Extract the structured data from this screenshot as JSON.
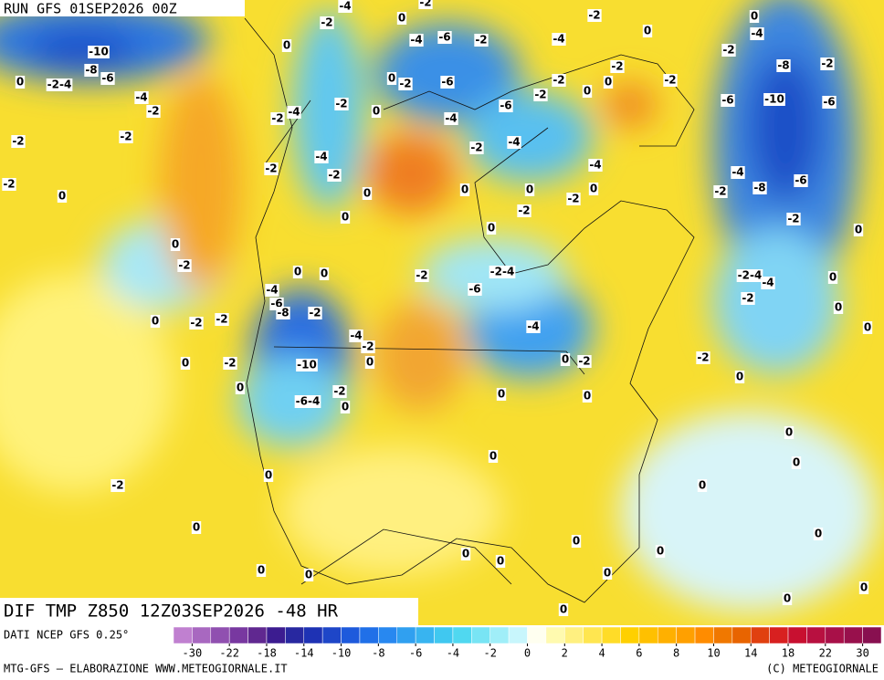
{
  "header": {
    "run": "RUN GFS 01SEP2026 00Z",
    "map_title": "DIF TMP Z850 12Z03SEP2026 -48 HR"
  },
  "map": {
    "contour_labels": [
      "-10",
      "-8",
      "-6",
      "0",
      "-2-4",
      "-4",
      "-2",
      "-2",
      "-2",
      "-2",
      "0",
      "0",
      "-2",
      "0",
      "-2",
      "-2",
      "0",
      "-2",
      "0",
      "-4",
      "-6",
      "-8",
      "-2",
      "-10",
      "-6-4",
      "-2",
      "0",
      "-4",
      "-2",
      "0",
      "0",
      "0",
      "0",
      "-2",
      "-4",
      "0",
      "-2",
      "-4",
      "-6",
      "-2",
      "-6",
      "-2",
      "0",
      "-2",
      "-4",
      "-2",
      "0",
      "-4",
      "-2",
      "-6",
      "-4",
      "-2",
      "-2",
      "-2",
      "-4",
      "-2",
      "0",
      "0",
      "-2",
      "0",
      "0",
      "-4",
      "-2",
      "-8",
      "-2",
      "-6",
      "-10",
      "-6",
      "-4",
      "-2",
      "0",
      "-2",
      "0",
      "0",
      "0",
      "0",
      "-2",
      "-4",
      "-2",
      "0",
      "-2",
      "-2-4",
      "-6",
      "-4",
      "0",
      "-2",
      "0",
      "0",
      "0",
      "-2",
      "-4",
      "-8",
      "-6",
      "-2",
      "0",
      "-2-4",
      "-4",
      "0",
      "-2",
      "0",
      "0",
      "-2",
      "0",
      "0",
      "0",
      "0",
      "0",
      "0",
      "0",
      "0",
      "0",
      "0",
      "0",
      "0",
      "0",
      "0",
      "0",
      "0",
      "-2",
      "0"
    ]
  },
  "legend": {
    "colors": [
      "#c080d0",
      "#a868c0",
      "#9050b0",
      "#7838a0",
      "#602890",
      "#3c1c90",
      "#2828a0",
      "#1e32b4",
      "#1e46c8",
      "#1e5adc",
      "#2070e8",
      "#2888f0",
      "#30a0f0",
      "#38b4f0",
      "#40c8f0",
      "#50d8f0",
      "#78e4f4",
      "#a0eef8",
      "#c8f6fc",
      "#fffff0",
      "#fffaaf",
      "#fff080",
      "#ffe650",
      "#ffdc28",
      "#ffd000",
      "#ffc000",
      "#ffb000",
      "#ffa000",
      "#ff8c00",
      "#f07800",
      "#e86400",
      "#e04010",
      "#d82020",
      "#c81030",
      "#b81040",
      "#a81048",
      "#98104c",
      "#881050"
    ],
    "ticks": [
      "-30",
      "-22",
      "-18",
      "-14",
      "-10",
      "-8",
      "-6",
      "-4",
      "-2",
      "0",
      "2",
      "4",
      "6",
      "8",
      "10",
      "14",
      "18",
      "22",
      "30"
    ]
  },
  "footer": {
    "source": "DATI NCEP GFS 0.25°",
    "credit": "MTG-GFS — ELABORAZIONE WWW.METEOGIORNALE.IT",
    "copyright": "(C) METEOGIORNALE"
  }
}
